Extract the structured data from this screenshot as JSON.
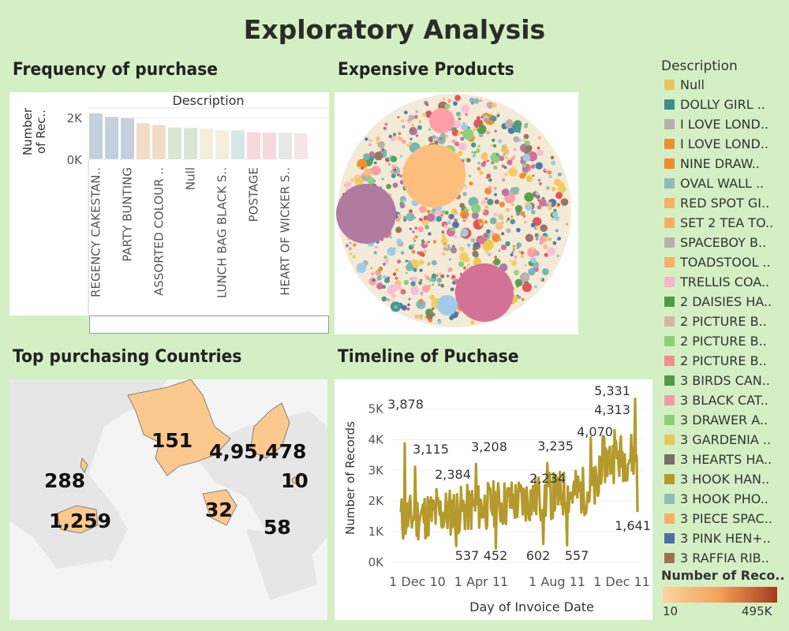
{
  "page_title": "Exploratory Analysis",
  "sections": {
    "frequency": "Frequency of purchase",
    "expensive": "Expensive Products",
    "countries": "Top purchasing Countries",
    "timeline": "Timeline of Puchase"
  },
  "legend": {
    "title": "Description",
    "items": [
      {
        "label": "Null",
        "color": "#e8c85c"
      },
      {
        "label": "DOLLY GIRL ..",
        "color": "#3b8e8e"
      },
      {
        "label": "I LOVE LOND..",
        "color": "#b7aeb0"
      },
      {
        "label": "I LOVE LOND..",
        "color": "#ef8f2a"
      },
      {
        "label": "NINE DRAW..",
        "color": "#ef8f2a"
      },
      {
        "label": "OVAL WALL ..",
        "color": "#8fbcb8"
      },
      {
        "label": "RED SPOT GI..",
        "color": "#f7b064"
      },
      {
        "label": "SET 2 TEA TO..",
        "color": "#f7b064"
      },
      {
        "label": "SPACEBOY B..",
        "color": "#b7aeb0"
      },
      {
        "label": "TOADSTOOL ..",
        "color": "#f7b064"
      },
      {
        "label": "TRELLIS COA..",
        "color": "#f4b7cb"
      },
      {
        "label": "2 DAISIES HA..",
        "color": "#4f9a4a"
      },
      {
        "label": "2 PICTURE B..",
        "color": "#d6b5a1"
      },
      {
        "label": "2 PICTURE B..",
        "color": "#8cd073"
      },
      {
        "label": "2 PICTURE B..",
        "color": "#f28d8d"
      },
      {
        "label": "3 BIRDS CAN..",
        "color": "#4f9a4a"
      },
      {
        "label": "3 BLACK CAT..",
        "color": "#f59aa2"
      },
      {
        "label": "3 DRAWER A..",
        "color": "#8cd073"
      },
      {
        "label": "3 GARDENIA ..",
        "color": "#e8c85c"
      },
      {
        "label": "3 HEARTS HA..",
        "color": "#7a6e6a"
      },
      {
        "label": "3 HOOK HAN..",
        "color": "#b49a2c"
      },
      {
        "label": "3 HOOK PHO..",
        "color": "#8fbcb8"
      },
      {
        "label": "3 PIECE SPAC..",
        "color": "#f7b064"
      },
      {
        "label": "3 PINK HEN+..",
        "color": "#4a6fa5"
      },
      {
        "label": "3 RAFFIA RIB..",
        "color": "#9e7156"
      }
    ]
  },
  "color_legend": {
    "title": "Number of Reco..",
    "min_label": "10",
    "max_label": "495K",
    "color_min": "#fcd5a0",
    "color_max": "#a63a1c"
  },
  "bar_chart": {
    "header": "Description",
    "ylabel": "Number of Rec..",
    "tick_labels": [
      "2K",
      "0K"
    ],
    "categories": [
      "REGENCY CAKESTAN..",
      "",
      "PARTY BUNTING",
      "",
      "ASSORTED COLOUR ..",
      "",
      "Null",
      "",
      "LUNCH BAG BLACK S..",
      "",
      "POSTAGE",
      "",
      "HEART OF WICKER S..",
      ""
    ],
    "values": [
      2200,
      2030,
      1970,
      1730,
      1640,
      1520,
      1500,
      1470,
      1390,
      1380,
      1300,
      1280,
      1270,
      1250
    ],
    "colors": [
      "#c5d0de",
      "#c5d0de",
      "#c5d0de",
      "#f2dcc6",
      "#f2dcc6",
      "#d7e6d5",
      "#d7e6d5",
      "#f2eedb",
      "#f2eedb",
      "#d4e6e5",
      "#f5d9dc",
      "#f5d9dc",
      "#e7e7e7",
      "#f5e4e8"
    ]
  },
  "map": {
    "labels": [
      {
        "text": "151"
      },
      {
        "text": "4,95,478"
      },
      {
        "text": "288"
      },
      {
        "text": "10"
      },
      {
        "text": "1,259"
      },
      {
        "text": "32"
      },
      {
        "text": "58"
      }
    ]
  },
  "chart_data": {
    "type": "line",
    "title": "Timeline of Puchase",
    "xlabel": "Day of Invoice Date",
    "ylabel": "Number of Records",
    "x_ticks": [
      "1 Dec 10",
      "1 Apr 11",
      "1 Aug 11",
      "1 Dec 11"
    ],
    "y_ticks": [
      "0K",
      "1K",
      "2K",
      "3K",
      "4K",
      "5K"
    ],
    "ylim": [
      0,
      5500
    ],
    "line_color": "#b49a2c",
    "annotations": [
      {
        "label": "3,878",
        "value": 3878
      },
      {
        "label": "3,115",
        "value": 3115
      },
      {
        "label": "2,384",
        "value": 2384
      },
      {
        "label": "3,208",
        "value": 3208
      },
      {
        "label": "2,234",
        "value": 2234
      },
      {
        "label": "3,235",
        "value": 3235
      },
      {
        "label": "4,070",
        "value": 4070
      },
      {
        "label": "4,313",
        "value": 4313
      },
      {
        "label": "5,331",
        "value": 5331
      },
      {
        "label": "1,641",
        "value": 1641
      },
      {
        "label": "537",
        "value": 537
      },
      {
        "label": "452",
        "value": 452
      },
      {
        "label": "602",
        "value": 602
      },
      {
        "label": "557",
        "value": 557
      }
    ]
  }
}
